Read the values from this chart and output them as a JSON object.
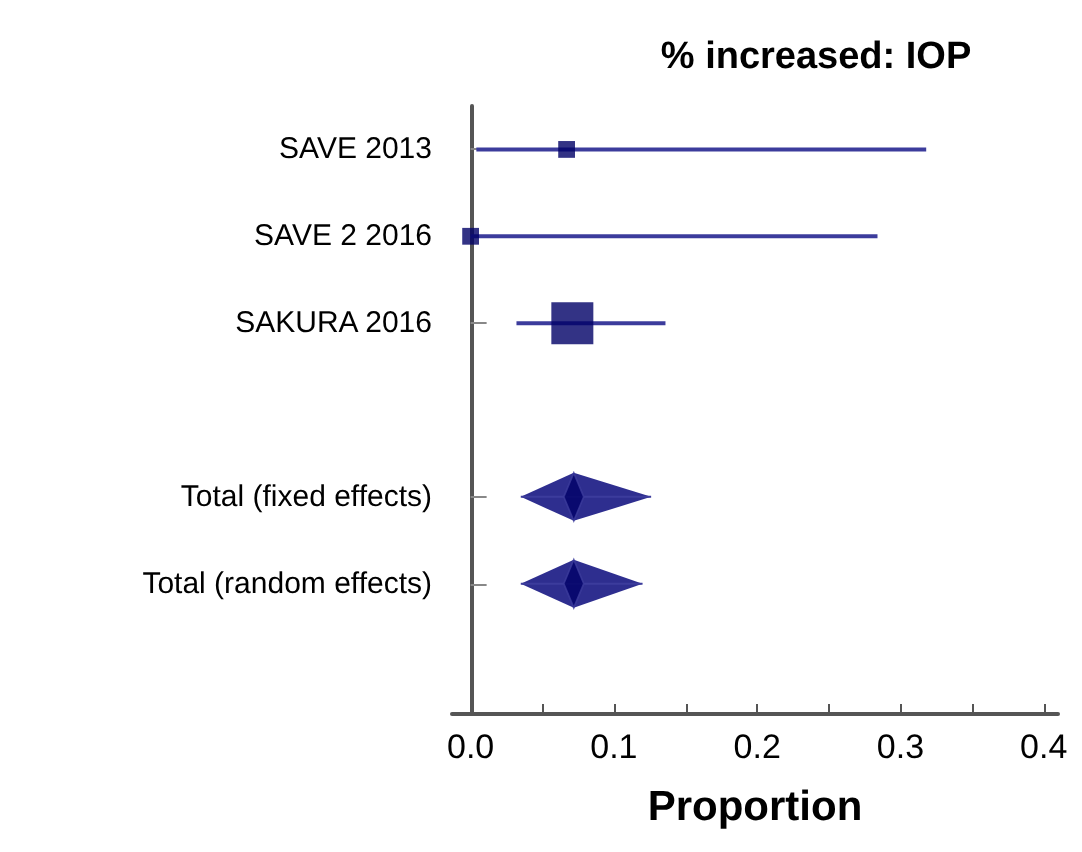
{
  "chart_data": {
    "type": "scatter",
    "orientation": "horizontal",
    "title": "% increased: IOP",
    "xlabel": "Proportion",
    "categories": [
      "SAVE 2013",
      "SAVE 2 2016",
      "SAKURA 2016",
      null,
      "Total (fixed effects)",
      "Total (random effects)",
      null
    ],
    "series": [
      {
        "type": "bubble",
        "marker": "square",
        "color": "#000066",
        "values": [
          0.067,
          0.0,
          0.071,
          null,
          null,
          null,
          null
        ],
        "sizes": [
          0.16,
          0.16,
          1,
          null,
          null,
          null,
          null
        ],
        "errors": [
          [
            0.004,
            0.318
          ],
          [
            0.0,
            0.284
          ],
          [
            0.032,
            0.136
          ],
          null,
          null,
          null,
          null
        ]
      },
      {
        "type": "scatter",
        "marker": "diamond",
        "color": "#000066",
        "values": [
          null,
          null,
          null,
          null,
          0.072,
          0.072,
          null
        ],
        "errors": [
          null,
          null,
          null,
          null,
          [
            0.035,
            0.126
          ],
          [
            0.035,
            0.12
          ],
          null
        ]
      }
    ],
    "xlim": [
      -0.013,
      0.41
    ],
    "xticks": [
      {
        "value": 0,
        "label": "0.0"
      },
      {
        "value": 0.05,
        "label": null
      },
      {
        "value": 0.1,
        "label": "0.1"
      },
      {
        "value": 0.15,
        "label": null
      },
      {
        "value": 0.2,
        "label": "0.2"
      },
      {
        "value": 0.25,
        "label": null
      },
      {
        "value": 0.3,
        "label": "0.3"
      },
      {
        "value": 0.35,
        "label": null
      },
      {
        "value": 0.4,
        "label": "0.4"
      }
    ],
    "grid": false
  }
}
